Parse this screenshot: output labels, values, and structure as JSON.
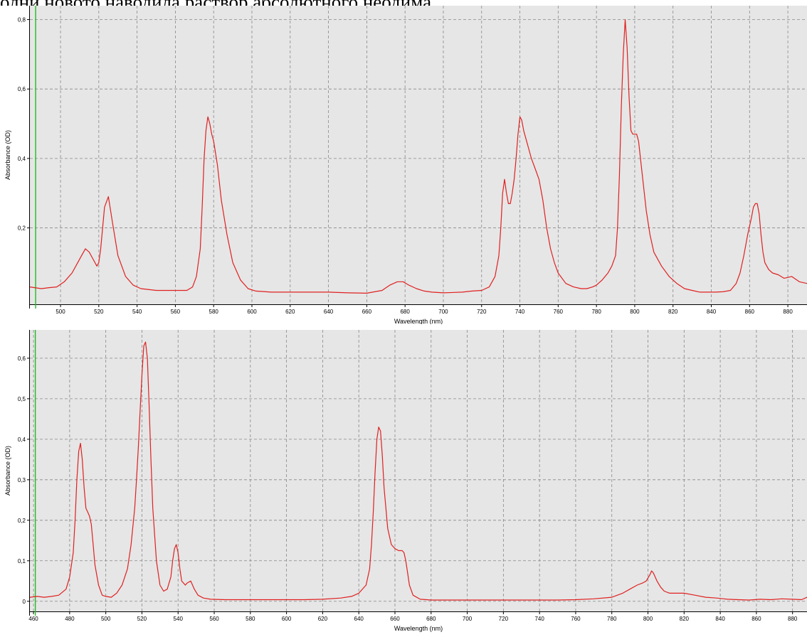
{
  "page": {
    "header_text": "олни новото наводила раствор абсолютного неодима."
  },
  "chart_data": [
    {
      "type": "line",
      "title": "",
      "xlabel": "Wavelength (nm)",
      "ylabel": "Absorbance (OD)",
      "xlim": [
        484,
        890
      ],
      "ylim": [
        -0.02,
        0.84
      ],
      "x_ticks": [
        500,
        520,
        540,
        560,
        580,
        600,
        620,
        640,
        660,
        680,
        700,
        720,
        740,
        760,
        780,
        800,
        820,
        840,
        860,
        880
      ],
      "y_ticks": [
        0.2,
        0.4,
        0.6,
        0.8
      ],
      "y_tick_labels": [
        "0,2",
        "0,4",
        "0,6",
        "0,8"
      ],
      "grid": true,
      "marker_x": 487,
      "colors": {
        "line": "#e02020",
        "marker": "#22bb22",
        "background": "#e6e6e6",
        "grid": "#888888"
      },
      "series": [
        {
          "x": [
            484,
            490,
            494,
            498,
            502,
            506,
            509,
            511,
            513,
            515,
            517,
            519,
            520,
            521,
            522,
            523,
            525,
            527,
            530,
            534,
            538,
            542,
            550,
            558,
            562,
            566,
            569,
            571,
            573,
            574,
            575,
            576,
            577,
            578,
            579,
            580,
            582,
            584,
            587,
            590,
            594,
            598,
            602,
            610,
            620,
            630,
            640,
            650,
            660,
            668,
            672,
            676,
            679,
            682,
            686,
            690,
            694,
            700,
            710,
            715,
            720,
            724,
            727,
            729,
            730,
            731,
            732,
            733,
            734,
            735,
            736,
            737,
            738,
            739,
            740,
            741,
            742,
            744,
            746,
            748,
            750,
            752,
            754,
            756,
            758,
            760,
            764,
            768,
            772,
            775,
            778,
            780,
            783,
            786,
            788,
            790,
            791,
            792,
            793,
            794,
            795,
            796,
            797,
            798,
            799,
            800,
            801,
            802,
            804,
            806,
            808,
            810,
            814,
            818,
            822,
            826,
            830,
            834,
            838,
            842,
            846,
            850,
            853,
            855,
            857,
            859,
            861,
            862,
            863,
            864,
            865,
            866,
            867,
            868,
            870,
            872,
            875,
            878,
            882,
            886,
            890
          ],
          "y": [
            0.03,
            0.025,
            0.028,
            0.03,
            0.045,
            0.07,
            0.1,
            0.12,
            0.14,
            0.13,
            0.11,
            0.09,
            0.1,
            0.14,
            0.2,
            0.26,
            0.29,
            0.22,
            0.12,
            0.06,
            0.035,
            0.025,
            0.02,
            0.02,
            0.02,
            0.02,
            0.03,
            0.06,
            0.14,
            0.26,
            0.4,
            0.48,
            0.52,
            0.5,
            0.47,
            0.45,
            0.38,
            0.28,
            0.18,
            0.1,
            0.05,
            0.025,
            0.018,
            0.015,
            0.015,
            0.015,
            0.015,
            0.013,
            0.012,
            0.02,
            0.035,
            0.045,
            0.045,
            0.035,
            0.025,
            0.018,
            0.015,
            0.013,
            0.015,
            0.018,
            0.02,
            0.03,
            0.06,
            0.12,
            0.2,
            0.3,
            0.34,
            0.3,
            0.27,
            0.27,
            0.3,
            0.34,
            0.4,
            0.47,
            0.52,
            0.51,
            0.48,
            0.44,
            0.4,
            0.37,
            0.34,
            0.28,
            0.2,
            0.14,
            0.1,
            0.07,
            0.04,
            0.03,
            0.025,
            0.025,
            0.03,
            0.035,
            0.05,
            0.07,
            0.09,
            0.12,
            0.2,
            0.35,
            0.55,
            0.7,
            0.8,
            0.72,
            0.58,
            0.48,
            0.47,
            0.47,
            0.47,
            0.45,
            0.35,
            0.25,
            0.18,
            0.13,
            0.09,
            0.06,
            0.04,
            0.025,
            0.02,
            0.015,
            0.015,
            0.015,
            0.016,
            0.02,
            0.04,
            0.07,
            0.12,
            0.18,
            0.23,
            0.26,
            0.27,
            0.27,
            0.24,
            0.18,
            0.13,
            0.1,
            0.08,
            0.07,
            0.065,
            0.055,
            0.06,
            0.045,
            0.04
          ]
        }
      ]
    },
    {
      "type": "line",
      "title": "",
      "xlabel": "Wavelength (nm)",
      "ylabel": "Absorbance (OD)",
      "xlim": [
        458,
        888
      ],
      "ylim": [
        -0.025,
        0.67
      ],
      "x_ticks": [
        460,
        480,
        500,
        520,
        540,
        560,
        580,
        600,
        620,
        640,
        660,
        680,
        700,
        720,
        740,
        760,
        780,
        800,
        820,
        840,
        860,
        880
      ],
      "y_ticks": [
        0,
        0.1,
        0.2,
        0.3,
        0.4,
        0.5,
        0.6
      ],
      "y_tick_labels": [
        "0",
        "0,1",
        "0,2",
        "0,3",
        "0,4",
        "0,5",
        "0,6"
      ],
      "grid": true,
      "marker_x": 461,
      "colors": {
        "line": "#e02020",
        "marker": "#22bb22",
        "background": "#e6e6e6",
        "grid": "#888888"
      },
      "series": [
        {
          "x": [
            458,
            462,
            466,
            470,
            474,
            478,
            480,
            482,
            483,
            484,
            485,
            486,
            487,
            488,
            489,
            490,
            491,
            492,
            493,
            494,
            496,
            498,
            500,
            503,
            506,
            509,
            512,
            514,
            516,
            517,
            518,
            519,
            520,
            521,
            522,
            523,
            524,
            525,
            526,
            528,
            530,
            532,
            534,
            536,
            537,
            538,
            539,
            540,
            541,
            542,
            543,
            544,
            545,
            547,
            549,
            551,
            554,
            558,
            566,
            574,
            582,
            590,
            600,
            610,
            620,
            630,
            636,
            640,
            644,
            646,
            647,
            648,
            649,
            650,
            651,
            652,
            653,
            654,
            656,
            658,
            660,
            662,
            664,
            665,
            666,
            667,
            668,
            670,
            674,
            680,
            690,
            700,
            710,
            720,
            730,
            740,
            750,
            760,
            770,
            780,
            786,
            790,
            794,
            797,
            799,
            801,
            802,
            803,
            805,
            807,
            809,
            812,
            816,
            820,
            826,
            832,
            838,
            844,
            850,
            856,
            862,
            868,
            874,
            880,
            885,
            888
          ],
          "y": [
            0.01,
            0.012,
            0.01,
            0.012,
            0.015,
            0.03,
            0.06,
            0.12,
            0.2,
            0.3,
            0.37,
            0.39,
            0.35,
            0.28,
            0.23,
            0.22,
            0.21,
            0.19,
            0.14,
            0.09,
            0.04,
            0.015,
            0.012,
            0.01,
            0.02,
            0.04,
            0.08,
            0.14,
            0.23,
            0.3,
            0.38,
            0.47,
            0.56,
            0.63,
            0.64,
            0.6,
            0.48,
            0.35,
            0.23,
            0.1,
            0.04,
            0.025,
            0.03,
            0.06,
            0.1,
            0.13,
            0.14,
            0.12,
            0.08,
            0.05,
            0.045,
            0.04,
            0.045,
            0.05,
            0.03,
            0.015,
            0.008,
            0.005,
            0.004,
            0.004,
            0.004,
            0.004,
            0.004,
            0.004,
            0.005,
            0.008,
            0.012,
            0.02,
            0.04,
            0.08,
            0.14,
            0.22,
            0.32,
            0.4,
            0.43,
            0.42,
            0.36,
            0.28,
            0.18,
            0.14,
            0.13,
            0.125,
            0.125,
            0.12,
            0.1,
            0.07,
            0.04,
            0.015,
            0.005,
            0.003,
            0.003,
            0.003,
            0.003,
            0.003,
            0.003,
            0.003,
            0.003,
            0.004,
            0.006,
            0.01,
            0.02,
            0.03,
            0.04,
            0.045,
            0.05,
            0.065,
            0.075,
            0.07,
            0.05,
            0.035,
            0.025,
            0.02,
            0.02,
            0.02,
            0.015,
            0.01,
            0.008,
            0.005,
            0.004,
            0.003,
            0.005,
            0.004,
            0.006,
            0.005,
            0.004,
            0.01
          ]
        }
      ]
    }
  ]
}
